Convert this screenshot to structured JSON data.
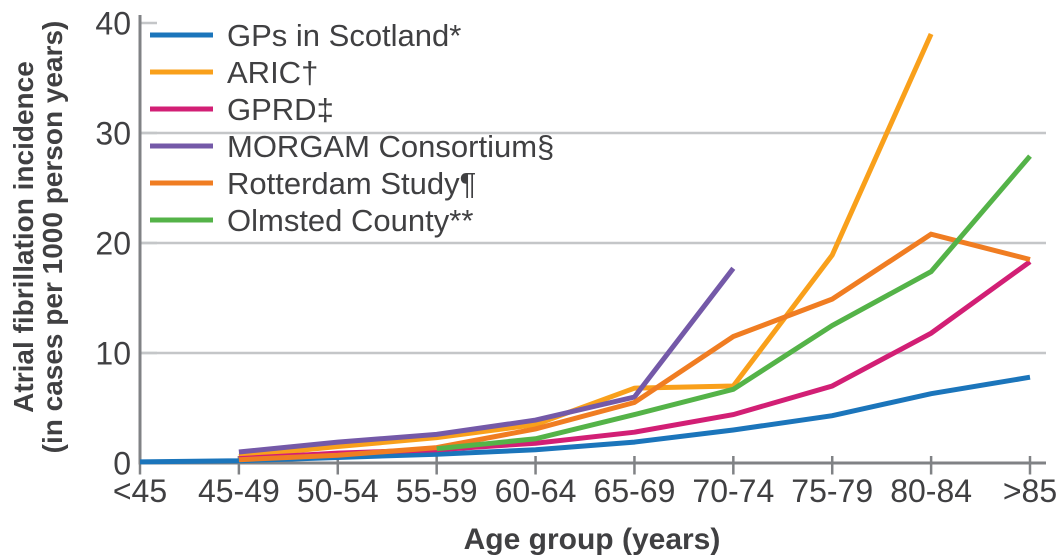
{
  "chart_data": {
    "type": "line",
    "title": "",
    "xlabel": "Age group (years)",
    "ylabel_line1": "Atrial fibrillation incidence",
    "ylabel_line2": "(in cases per 1000 person years)",
    "categories": [
      "<45",
      "45-49",
      "50-54",
      "55-59",
      "60-64",
      "65-69",
      "70-74",
      "75-79",
      "80-84",
      ">85"
    ],
    "yticks": [
      0,
      10,
      20,
      30,
      40
    ],
    "ylim": [
      0,
      40
    ],
    "grid_values": [
      10,
      20,
      30
    ],
    "grid_on": true,
    "legend_position": "top-left",
    "series": [
      {
        "name": "GPs in Scotland*",
        "color": "#1B75BB",
        "start_index": 0,
        "values": [
          0.1,
          0.2,
          0.5,
          0.8,
          1.2,
          1.9,
          3.0,
          4.3,
          6.3,
          7.8
        ]
      },
      {
        "name": "ARIC†",
        "color": "#F9A01B",
        "start_index": 1,
        "values": [
          0.6,
          1.5,
          2.3,
          3.5,
          6.8,
          7.0,
          18.9,
          39.0
        ]
      },
      {
        "name": "GPRD‡",
        "color": "#D21F75",
        "start_index": 1,
        "values": [
          0.4,
          0.9,
          1.2,
          1.8,
          2.8,
          4.4,
          7.0,
          11.8,
          18.3
        ]
      },
      {
        "name": "MORGAM Consortium§",
        "color": "#7459A8",
        "start_index": 1,
        "values": [
          1.0,
          1.9,
          2.6,
          3.9,
          6.0,
          17.7
        ]
      },
      {
        "name": "Rotterdam Study¶",
        "color": "#F07D22",
        "start_index": 1,
        "values": [
          0.3,
          0.7,
          1.4,
          3.1,
          5.5,
          11.5,
          14.9,
          20.8,
          18.5
        ]
      },
      {
        "name": "Olmsted County**",
        "color": "#54B348",
        "start_index": 3,
        "values": [
          1.3,
          2.2,
          4.4,
          6.7,
          12.5,
          17.4,
          27.9
        ]
      }
    ],
    "colors": {
      "axis": "#808285",
      "grid": "#C4C6C8",
      "text": "#404042"
    }
  }
}
